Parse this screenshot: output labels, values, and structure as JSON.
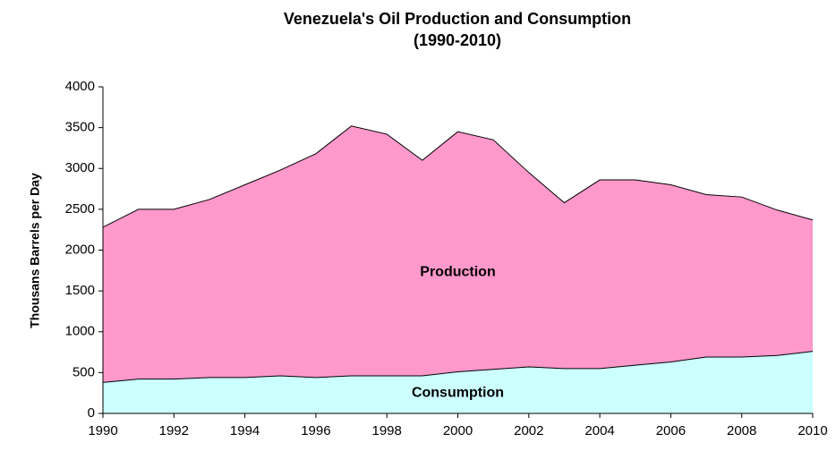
{
  "chart_data": {
    "type": "area",
    "title": "Venezuela's Oil Production and Consumption",
    "subtitle": "(1990-2010)",
    "y_label": "Thousans Barrels per Day",
    "x": [
      1990,
      1991,
      1992,
      1993,
      1994,
      1995,
      1996,
      1997,
      1998,
      1999,
      2000,
      2001,
      2002,
      2003,
      2004,
      2005,
      2006,
      2007,
      2008,
      2009,
      2010
    ],
    "series": [
      {
        "name": "Production",
        "color": "#ff99cc",
        "values": [
          2280,
          2500,
          2500,
          2620,
          2800,
          2980,
          3180,
          3520,
          3420,
          3100,
          3450,
          3350,
          2950,
          2580,
          2860,
          2860,
          2800,
          2680,
          2650,
          2490,
          2370
        ]
      },
      {
        "name": "Consumption",
        "color": "#ccffff",
        "values": [
          380,
          420,
          420,
          440,
          440,
          460,
          440,
          460,
          460,
          460,
          510,
          540,
          570,
          550,
          550,
          590,
          630,
          690,
          690,
          710,
          760
        ]
      }
    ],
    "xlim": [
      1990,
      2010
    ],
    "xticks": [
      1990,
      1992,
      1994,
      1996,
      1998,
      2000,
      2002,
      2004,
      2006,
      2008,
      2010
    ],
    "ylim": [
      0,
      4000
    ],
    "yticks": [
      0,
      500,
      1000,
      1500,
      2000,
      2500,
      3000,
      3500,
      4000
    ]
  }
}
